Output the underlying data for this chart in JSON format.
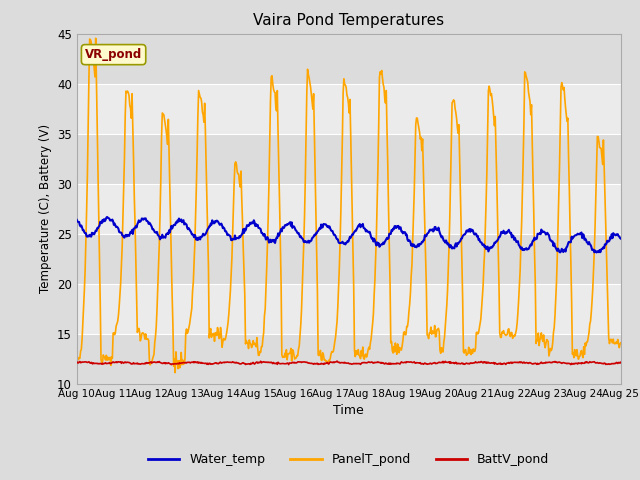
{
  "title": "Vaira Pond Temperatures",
  "xlabel": "Time",
  "ylabel": "Temperature (C), Battery (V)",
  "ylim": [
    10,
    45
  ],
  "yticks": [
    10,
    15,
    20,
    25,
    30,
    35,
    40,
    45
  ],
  "x_labels": [
    "Aug 10",
    "Aug 11",
    "Aug 12",
    "Aug 13",
    "Aug 14",
    "Aug 15",
    "Aug 16",
    "Aug 17",
    "Aug 18",
    "Aug 19",
    "Aug 20",
    "Aug 21",
    "Aug 22",
    "Aug 23",
    "Aug 24",
    "Aug 25"
  ],
  "annotation_text": "VR_pond",
  "annotation_color": "#8B0000",
  "annotation_bg": "#FFFACD",
  "annotation_border": "#999900",
  "water_temp_color": "#0000CC",
  "panel_temp_color": "#FFA500",
  "batt_color": "#CC0000",
  "legend_labels": [
    "Water_temp",
    "PanelT_pond",
    "BattV_pond"
  ],
  "fig_bg": "#DCDCDC",
  "plot_bg": "#E8E8E8",
  "band_light": "#EBEBEB",
  "band_dark": "#DCDCDC",
  "grid_color": "#FFFFFF"
}
